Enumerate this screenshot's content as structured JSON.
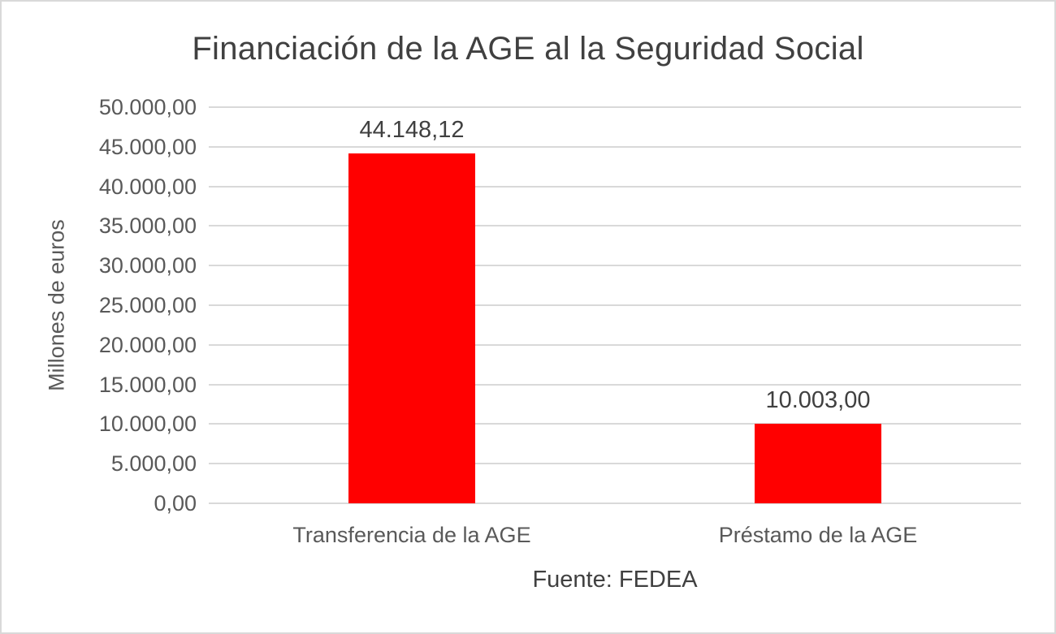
{
  "chart_data": {
    "type": "bar",
    "title": "Financiación de la AGE al la Seguridad Social",
    "categories": [
      "Transferencia de la AGE",
      "Préstamo de la AGE"
    ],
    "values": [
      44148.12,
      10003.0
    ],
    "value_labels": [
      "44.148,12",
      "10.003,00"
    ],
    "xlabel": "",
    "ylabel": "Millones de euros",
    "ylim": [
      0,
      50000
    ],
    "ytick_step": 5000,
    "ytick_labels": [
      "0,00",
      "5.000,00",
      "10.000,00",
      "15.000,00",
      "20.000,00",
      "25.000,00",
      "30.000,00",
      "35.000,00",
      "40.000,00",
      "45.000,00",
      "50.000,00"
    ],
    "grid": true,
    "legend": "none",
    "source": "Fuente: FEDEA",
    "colors": {
      "bar": "#ff0000",
      "grid": "#d9d9d9",
      "title_text": "#404040",
      "axis_text": "#595959",
      "border": "#d9d9d9"
    }
  }
}
